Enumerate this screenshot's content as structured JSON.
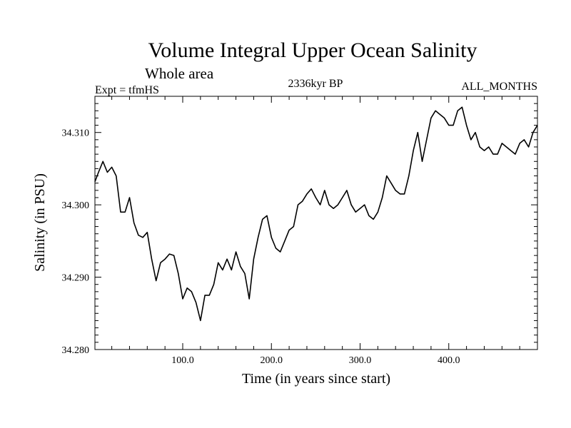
{
  "chart_data": {
    "type": "line",
    "title": "Volume Integral Upper Ocean Salinity",
    "subtitle": "Whole area",
    "experiment": "Expt = tfmHS",
    "period": "2336kyr BP",
    "season": "ALL_MONTHS",
    "xlabel": "Time (in years since start)",
    "ylabel": "Salinity (in PSU)",
    "xlim": [
      1,
      500
    ],
    "ylim": [
      34.28,
      34.315
    ],
    "x_ticks": [
      100,
      200,
      300,
      400
    ],
    "x_tick_labels": [
      "100.0",
      "200.0",
      "300.0",
      "400.0"
    ],
    "y_ticks": [
      34.28,
      34.29,
      34.3,
      34.31
    ],
    "y_tick_labels": [
      "34.280",
      "34.290",
      "34.300",
      "34.310"
    ],
    "series": [
      {
        "name": "salinity",
        "x": [
          1,
          5,
          10,
          15,
          20,
          25,
          30,
          35,
          40,
          45,
          50,
          55,
          60,
          65,
          70,
          75,
          80,
          85,
          90,
          95,
          100,
          105,
          110,
          115,
          120,
          125,
          130,
          135,
          140,
          145,
          150,
          155,
          160,
          165,
          170,
          175,
          180,
          185,
          190,
          195,
          200,
          205,
          210,
          215,
          220,
          225,
          230,
          235,
          240,
          245,
          250,
          255,
          260,
          265,
          270,
          275,
          280,
          285,
          290,
          295,
          300,
          305,
          310,
          315,
          320,
          325,
          330,
          335,
          340,
          345,
          350,
          355,
          360,
          365,
          370,
          375,
          380,
          385,
          390,
          395,
          400,
          405,
          410,
          415,
          420,
          425,
          430,
          435,
          440,
          445,
          450,
          455,
          460,
          465,
          470,
          475,
          480,
          485,
          490,
          495,
          500
        ],
        "values": [
          34.3032,
          34.3045,
          34.306,
          34.3045,
          34.3052,
          34.304,
          34.299,
          34.299,
          34.301,
          34.2975,
          34.2958,
          34.2955,
          34.2962,
          34.2925,
          34.2895,
          34.292,
          34.2925,
          34.2932,
          34.293,
          34.2905,
          34.287,
          34.2885,
          34.288,
          34.2865,
          34.284,
          34.2875,
          34.2875,
          34.289,
          34.292,
          34.291,
          34.2925,
          34.291,
          34.2935,
          34.2915,
          34.2905,
          34.287,
          34.2925,
          34.2955,
          34.298,
          34.2985,
          34.2955,
          34.294,
          34.2935,
          34.295,
          34.2965,
          34.297,
          34.3,
          34.3005,
          34.3015,
          34.3022,
          34.301,
          34.3,
          34.302,
          34.3,
          34.2995,
          34.3,
          34.301,
          34.302,
          34.3,
          34.299,
          34.2995,
          34.3,
          34.2985,
          34.298,
          34.299,
          34.301,
          34.304,
          34.303,
          34.302,
          34.3015,
          34.3015,
          34.304,
          34.3075,
          34.31,
          34.306,
          34.309,
          34.312,
          34.313,
          34.3125,
          34.312,
          34.311,
          34.311,
          34.313,
          34.3135,
          34.311,
          34.309,
          34.31,
          34.308,
          34.3075,
          34.308,
          34.307,
          34.307,
          34.3085,
          34.308,
          34.3075,
          34.307,
          34.3085,
          34.309,
          34.308,
          34.31,
          34.311
        ]
      }
    ]
  }
}
